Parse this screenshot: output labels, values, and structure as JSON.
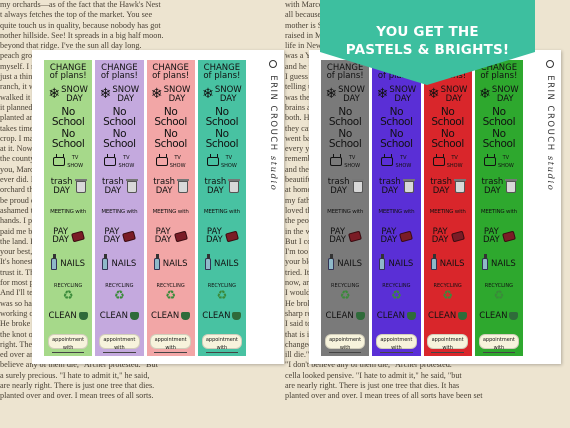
{
  "banner": {
    "line1": "YOU GET THE",
    "line2": "PASTELS & BRIGHTS!",
    "color": "#3dbf9f"
  },
  "brand": {
    "name": "ERIN CROUCH",
    "suffix": "studio"
  },
  "stickers": {
    "change_of_plans": "CHANGE of plans!",
    "snow": "SNOW",
    "day": "DAY",
    "no_school": "No School",
    "tv": "TV",
    "show": "SHOW",
    "trash": "trash",
    "trash_day": "DAY",
    "meeting_with": "MEETING with",
    "pay": "PAY",
    "pay_day": "DAY",
    "nails": "NAILS",
    "recycling": "RECYCLING",
    "clean": "CLEAN",
    "appointment_with": "appointment with"
  },
  "palettes": {
    "pastels": [
      "#a6d98a",
      "#c4a9de",
      "#f2a6a6",
      "#48c2a2"
    ],
    "brights": [
      "#7a7a7a",
      "#5a2fd6",
      "#d9262b",
      "#2ea82e"
    ]
  },
  "book_text": {
    "left": [
      "my orchards—as of the fact that the Hawk's Nest",
      "t always fetches the top of the market. You see",
      "quite touch us in quality, because nobody has got",
      "nother hillside. See! It spreads in a big half moon.",
      "beyond that ridge. I've the sun all day long.",
      "peach growing. More than half of it I planted",
      "myself. I never said much about it. It was",
      "just a thing I'd do. When I first got the",
      "ranch, it was nothing but hay and ruin. I",
      "walked it over a hundred times before I got",
      "it planned out. It was a big job. Then I",
      "planted and planted. I had to wait. A tree",
      "takes time. Five years, and then the first",
      "crop. I made a little. Then more. I kept",
      "at it. Now I've got the best orchard in",
      "the county, and I'm proud of it. I tell",
      "you, Marcella, it's the finest thing I",
      "ever did. I'd rather have planted that",
      "orchard than written a book. A man can",
      "be proud of a thing like that. I'm not",
      "ashamed to say it. It's the work of my",
      "hands. I put my heart in it. And it's",
      "paid me back. That's what I like about",
      "the land. It pays you back. You give it",
      "your best, and it gives you its best.",
      "It's honest. It doesn't lie. You can",
      "trust it. That's more than you can say",
      "for most people. I've learned that much.",
      "And I'll tell you another thing. I never",
      "was so happy in my life as when I was",
      "working on that orchard. Every day.",
      "He broke off short, his face for the first time",
      "the knot of argument. Archer protested.",
      "right. There is just one tree that dies. It has been",
      "ed over and over. I mean trees of all sorts have been set",
      "believe any of them die,\" Archer protested. \"But",
      "a surely precious. \"I hate to admit it,\" he said,",
      "are nearly right. There is just one tree that dies.",
      "planted over and over. I mean trees of all sorts."
    ],
    "right": [
      "with Marcella at his side, listening to how",
      "all because of my family,\" young Archer",
      "mother is Southern too—she was born",
      "raised in Maryland, in Baltimore, but",
      "life in New York. You know my father",
      "was a Yankee. He came from the North",
      "and he went South to make his fortune.",
      "I guess he made it, too. He was always",
      "telling us about it. He said the South",
      "was the place for a young man with",
      "brains and no money. He had plenty of",
      "both. He married my mother there and",
      "they came North after the war. He never",
      "went back. But my mother did. She went",
      "every year. She took us with her. I",
      "remember the old house and the garden,",
      "and the negroes, and the horses. It was",
      "beautiful. I loved it. But I never felt",
      "at home there. I was a Yankee too. Like",
      "my father. I couldn't help it. But I",
      "loved the South. I still do. And I love",
      "the people. They're the kindest people",
      "in the world. I'd do anything for them.",
      "But I couldn't live there. Not now.",
      "I'm too used to New York. It gets into",
      "your blood. You can't get it out. I've",
      "tried. It's no use. I'm a New Yorker",
      "now, and I'll always be one. I like it.",
      "I wouldn't be anything else. Would you?",
      "He broke off short, for the first time losing his",
      "sharp reverence. After a second's pause he went on: \"Then",
      "I said to myself, I will go back to the street, and play for all",
      "that is in the game. Now I—well! The whole world has",
      "changed since I—since I met—Marcella. I hate to admit it.\"",
      "ill die.\"",
      "\"I don't believe any of them die,\" Archer protested.",
      "cella looked pensive. \"I hate to admit it,\" he said, \"but",
      "are nearly right. There is just one tree that dies. It has",
      "planted over and over. I mean trees of all sorts have been set"
    ]
  }
}
